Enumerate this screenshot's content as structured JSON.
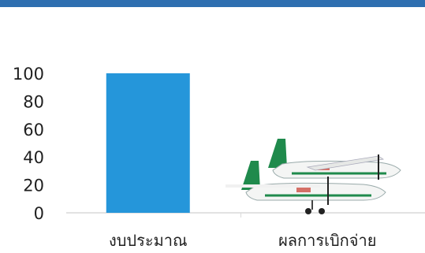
{
  "colors": {
    "top_bar": "#2e6fb0",
    "bar": "#2596da",
    "axis": "#d9d9d9",
    "plane_body": "#f4f5f4",
    "plane_green": "#1f8a4c",
    "plane_red": "#c8372b"
  },
  "chart_data": {
    "type": "bar",
    "title": "",
    "xlabel": "",
    "ylabel": "",
    "categories": [
      "งบประมาณ",
      "ผลการเบิกจ่าย"
    ],
    "values": [
      100,
      null
    ],
    "ylim": [
      0,
      100
    ],
    "yticks": [
      0,
      20,
      40,
      60,
      80,
      100
    ],
    "grid": false,
    "legend": "none",
    "annotations": [
      {
        "category": "ผลการเบิกจ่าย",
        "kind": "image",
        "icon": "airplane-group-icon"
      }
    ]
  }
}
